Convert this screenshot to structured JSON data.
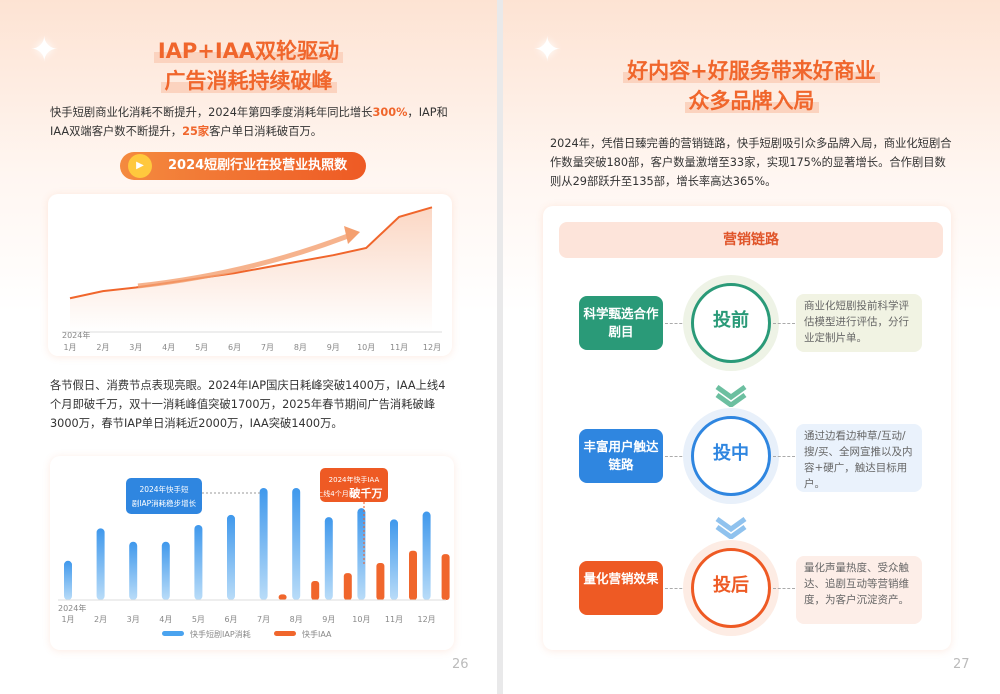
{
  "left": {
    "title": [
      "IAP+IAA双轮驱动",
      "广告消耗持续破峰"
    ],
    "intro": {
      "p1": "快手短剧商业化消耗不断提升，2024年第四季度消耗年同比增长",
      "h1": "300%",
      "p2": "，IAP和IAA双端客户数不断提升，",
      "h2": "25家",
      "p3": "客户单日消耗破百万。"
    },
    "pill_label": "2024短剧行业在投营业执照数",
    "paragraph2": "各节假日、消费节点表现亮眼。2024年IAP国庆日耗峰突破1400万，IAA上线4个月即破千万，双十一消耗峰值突破1700万，2025年春节期间广告消耗破峰3000万，春节IAP单日消耗近2000万，IAA突破1400万。",
    "page_number": "26"
  },
  "chart_data": [
    {
      "type": "line",
      "title": "2024短剧行业在投营业执照数",
      "year_label": "2024年",
      "categories": [
        "1月",
        "2月",
        "3月",
        "4月",
        "5月",
        "6月",
        "7月",
        "8月",
        "9月",
        "10月",
        "11月",
        "12月"
      ],
      "values": [
        24,
        30,
        33,
        37,
        41,
        45,
        50,
        55,
        60,
        66,
        92,
        100
      ],
      "note": "relative trend, no y-axis printed",
      "grid": false
    },
    {
      "type": "bar",
      "year_label": "2024年",
      "categories": [
        "1月",
        "2月",
        "3月",
        "4月",
        "5月",
        "6月",
        "7月",
        "8月",
        "9月",
        "10月",
        "11月",
        "12月"
      ],
      "series": [
        {
          "name": "快手短剧IAP消耗",
          "color": "#4aa3ef",
          "values": [
            35,
            64,
            52,
            52,
            67,
            76,
            100,
            100,
            74,
            82,
            72,
            79
          ]
        },
        {
          "name": "快手IAA",
          "color": "#f0662c",
          "values": [
            0,
            0,
            0,
            0,
            0,
            0,
            5,
            17,
            24,
            33,
            44,
            41
          ]
        }
      ],
      "annotations": [
        {
          "text": "2024年快手短剧IAP消耗稳步增长",
          "month": "7月"
        },
        {
          "text": "2024年快手IAA上线4个月即",
          "emph": "破千万",
          "month": "10月"
        }
      ],
      "legend": "bottom",
      "grid": false
    }
  ],
  "right": {
    "title": [
      "好内容+好服务带来好商业",
      "众多品牌入局"
    ],
    "paragraph": "2024年，凭借日臻完善的营销链路，快手短剧吸引众多品牌入局，商业化短剧合作数量突破180部，客户数量激增至33家，实现175%的显著增长。合作剧目数则从29部跃升至135部，增长率高达365%。",
    "chain_title": "营销链路",
    "stages": [
      {
        "left": "科学甄选合作剧目",
        "circle": "投前",
        "desc": "商业化短剧投前科学评估模型进行评估，分行业定制片单。",
        "color": "#2a9a78"
      },
      {
        "left": "丰富用户触达链路",
        "circle": "投中",
        "desc": "通过边看边种草/互动/搜/买、全网宣推以及内容+硬广，触达目标用户。",
        "color": "#2f86e0"
      },
      {
        "left": "量化营销效果",
        "circle": "投后",
        "desc": "量化声量热度、受众触达、追剧互动等营销维度，为客户沉淀资产。",
        "color": "#ee5a24"
      }
    ],
    "page_number": "27"
  }
}
